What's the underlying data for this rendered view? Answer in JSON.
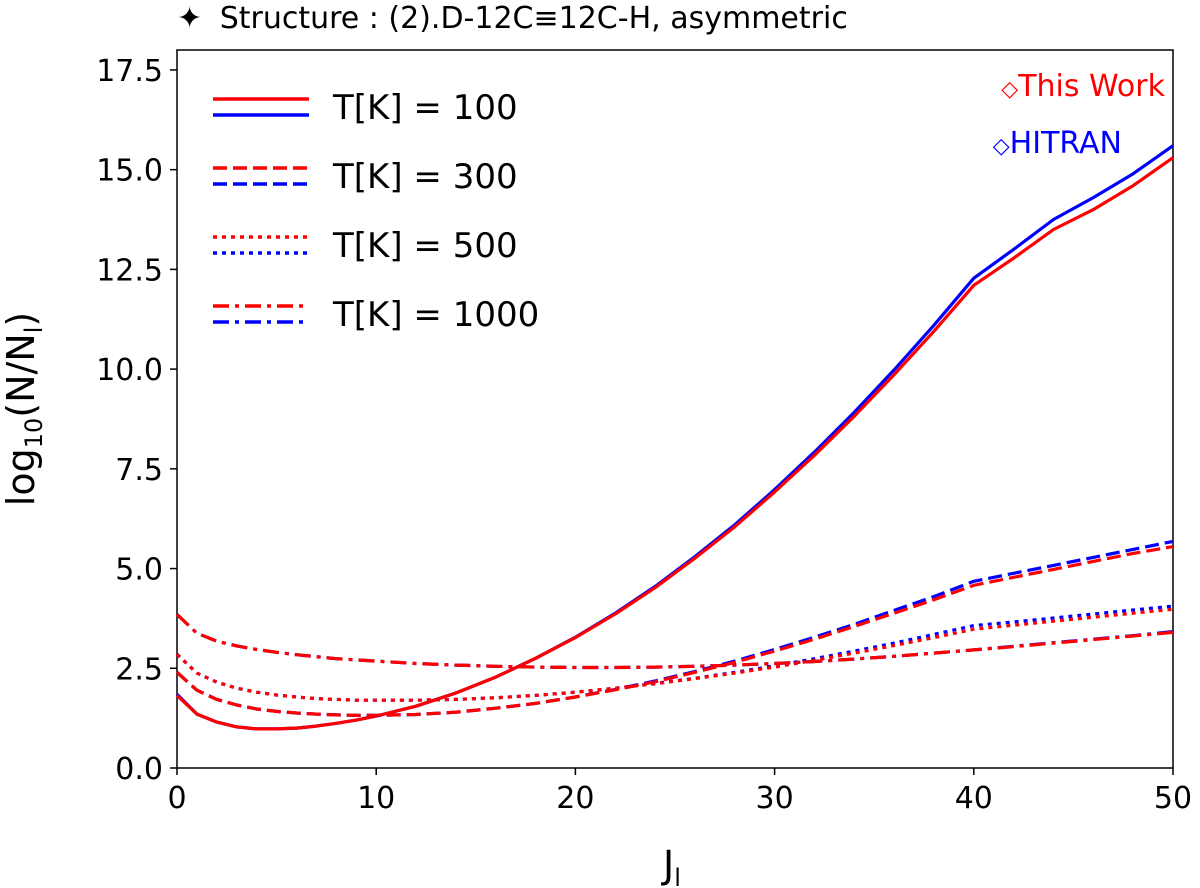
{
  "chart_data": {
    "type": "line",
    "title": "Structure : (2).D-12C≡12C-H, asymmetric",
    "title_marker": "✦",
    "xlabel": "J",
    "xlabel_sub": "l",
    "ylabel": "log",
    "ylabel_sub": "10",
    "ylabel_mid": "(N/N",
    "ylabel_sub2": "l",
    "ylabel_end": ")",
    "xlim": [
      0,
      50
    ],
    "ylim": [
      0,
      18
    ],
    "xticks": [
      0,
      10,
      20,
      30,
      40,
      50
    ],
    "yticks": [
      0.0,
      2.5,
      5.0,
      7.5,
      10.0,
      12.5,
      15.0,
      17.5
    ],
    "xtick_labels": [
      "0",
      "10",
      "20",
      "30",
      "40",
      "50"
    ],
    "ytick_labels": [
      "0.0",
      "2.5",
      "5.0",
      "7.5",
      "10.0",
      "12.5",
      "15.0",
      "17.5"
    ],
    "x": [
      0,
      1,
      2,
      3,
      4,
      5,
      6,
      7,
      8,
      9,
      10,
      12,
      14,
      16,
      18,
      20,
      22,
      24,
      26,
      28,
      30,
      32,
      34,
      36,
      38,
      40,
      42,
      44,
      46,
      48,
      50
    ],
    "temperature_legend": [
      {
        "label": "T[K] = 100",
        "style": "solid"
      },
      {
        "label": "T[K] = 300",
        "style": "dashed"
      },
      {
        "label": "T[K] = 500",
        "style": "dotted"
      },
      {
        "label": "T[K] = 1000",
        "style": "dashdot"
      }
    ],
    "source_legend": [
      {
        "label": "This Work",
        "marker": "◇",
        "color": "#ff0000"
      },
      {
        "label": "HITRAN",
        "marker": "◇",
        "color": "#0000ff"
      }
    ],
    "series": [
      {
        "name": "HITRAN T=100",
        "source": "HITRAN",
        "temperature": 100,
        "color": "#0000ff",
        "style": "solid",
        "values": [
          1.85,
          1.35,
          1.15,
          1.03,
          0.98,
          0.98,
          1.0,
          1.05,
          1.12,
          1.2,
          1.3,
          1.55,
          1.88,
          2.28,
          2.75,
          3.28,
          3.88,
          4.55,
          5.3,
          6.1,
          6.98,
          7.92,
          8.92,
          9.98,
          11.1,
          12.28,
          13.0,
          13.75,
          14.3,
          14.9,
          15.6
        ]
      },
      {
        "name": "This Work T=100",
        "source": "This Work",
        "temperature": 100,
        "color": "#ff0000",
        "style": "solid",
        "values": [
          1.82,
          1.35,
          1.15,
          1.03,
          0.98,
          0.98,
          1.0,
          1.05,
          1.12,
          1.2,
          1.3,
          1.55,
          1.88,
          2.28,
          2.75,
          3.27,
          3.86,
          4.52,
          5.26,
          6.05,
          6.92,
          7.84,
          8.82,
          9.86,
          10.95,
          12.1,
          12.78,
          13.5,
          14.0,
          14.6,
          15.3
        ]
      },
      {
        "name": "HITRAN T=300",
        "source": "HITRAN",
        "temperature": 300,
        "color": "#0000ff",
        "style": "dashed",
        "values": [
          2.4,
          1.95,
          1.72,
          1.58,
          1.48,
          1.42,
          1.38,
          1.35,
          1.33,
          1.32,
          1.32,
          1.34,
          1.4,
          1.5,
          1.62,
          1.78,
          1.97,
          2.18,
          2.42,
          2.68,
          2.97,
          3.28,
          3.6,
          3.95,
          4.3,
          4.68,
          4.88,
          5.08,
          5.28,
          5.48,
          5.68
        ]
      },
      {
        "name": "This Work T=300",
        "source": "This Work",
        "temperature": 300,
        "color": "#ff0000",
        "style": "dashed",
        "values": [
          2.4,
          1.95,
          1.72,
          1.58,
          1.48,
          1.42,
          1.38,
          1.35,
          1.33,
          1.32,
          1.32,
          1.34,
          1.4,
          1.5,
          1.62,
          1.78,
          1.96,
          2.16,
          2.4,
          2.65,
          2.93,
          3.23,
          3.55,
          3.88,
          4.22,
          4.58,
          4.78,
          4.98,
          5.18,
          5.38,
          5.55
        ]
      },
      {
        "name": "HITRAN T=500",
        "source": "HITRAN",
        "temperature": 500,
        "color": "#0000ff",
        "style": "dotted",
        "values": [
          2.85,
          2.38,
          2.15,
          2.0,
          1.9,
          1.83,
          1.78,
          1.74,
          1.72,
          1.7,
          1.7,
          1.7,
          1.72,
          1.76,
          1.82,
          1.9,
          2.0,
          2.12,
          2.25,
          2.4,
          2.56,
          2.74,
          2.93,
          3.13,
          3.35,
          3.57,
          3.66,
          3.76,
          3.86,
          3.96,
          4.06
        ]
      },
      {
        "name": "This Work T=500",
        "source": "This Work",
        "temperature": 500,
        "color": "#ff0000",
        "style": "dotted",
        "values": [
          2.85,
          2.38,
          2.15,
          2.0,
          1.9,
          1.83,
          1.78,
          1.74,
          1.72,
          1.7,
          1.7,
          1.7,
          1.72,
          1.76,
          1.82,
          1.9,
          2.0,
          2.11,
          2.24,
          2.38,
          2.53,
          2.7,
          2.88,
          3.07,
          3.27,
          3.48,
          3.58,
          3.68,
          3.78,
          3.88,
          3.98
        ]
      },
      {
        "name": "HITRAN T=1000",
        "source": "HITRAN",
        "temperature": 1000,
        "color": "#0000ff",
        "style": "dashdot",
        "values": [
          3.85,
          3.38,
          3.18,
          3.06,
          2.97,
          2.9,
          2.84,
          2.79,
          2.74,
          2.71,
          2.68,
          2.62,
          2.58,
          2.55,
          2.53,
          2.52,
          2.52,
          2.53,
          2.55,
          2.58,
          2.62,
          2.67,
          2.73,
          2.8,
          2.88,
          2.96,
          3.05,
          3.14,
          3.23,
          3.32,
          3.42
        ]
      },
      {
        "name": "This Work T=1000",
        "source": "This Work",
        "temperature": 1000,
        "color": "#ff0000",
        "style": "dashdot",
        "values": [
          3.85,
          3.38,
          3.18,
          3.06,
          2.97,
          2.9,
          2.84,
          2.79,
          2.74,
          2.71,
          2.68,
          2.62,
          2.58,
          2.55,
          2.53,
          2.52,
          2.52,
          2.53,
          2.55,
          2.58,
          2.62,
          2.67,
          2.73,
          2.8,
          2.88,
          2.96,
          3.04,
          3.13,
          3.22,
          3.31,
          3.4
        ]
      }
    ]
  }
}
